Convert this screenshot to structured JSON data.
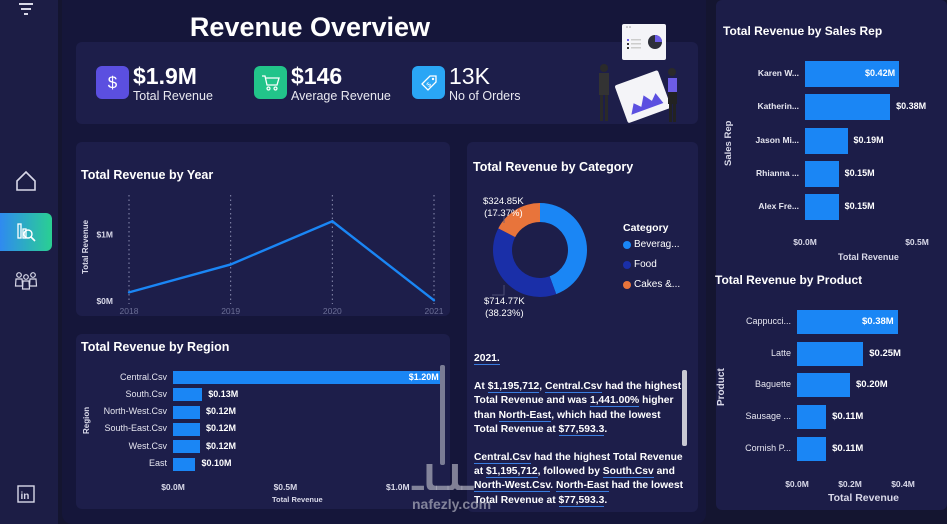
{
  "page": {
    "title": "Revenue Overview"
  },
  "sidebar": {
    "items": [
      {
        "name": "filter",
        "icon": "filter-icon"
      },
      {
        "name": "home",
        "icon": "home-icon"
      },
      {
        "name": "analytics",
        "icon": "analytics-icon",
        "active": true
      },
      {
        "name": "sales-reps",
        "icon": "people-icon"
      },
      {
        "name": "linkedin",
        "icon": "linkedin-icon"
      }
    ]
  },
  "kpis": [
    {
      "value": "$1.9M",
      "label": "Total Revenue",
      "icon": "dollar-icon",
      "color": "#5b4fe0"
    },
    {
      "value": "$146",
      "label": "Average Revenue",
      "icon": "cart-icon",
      "color": "#22c48a"
    },
    {
      "value": "13K",
      "label": "No of Orders",
      "icon": "tag-icon",
      "color": "#2aa6f5"
    }
  ],
  "colors": {
    "bar": "#1a86f5",
    "line": "#1a86f5",
    "beverages": "#1a86f5",
    "food": "#1a2fa8",
    "cakes": "#e8743b"
  },
  "chart_data": [
    {
      "id": "revenue-by-year",
      "type": "line",
      "title": "Total Revenue by Year",
      "xlabel": "",
      "ylabel": "Total Revenue",
      "categories": [
        "2018",
        "2019",
        "2020",
        "2021"
      ],
      "values": [
        0.13,
        0.55,
        1.2,
        0.01
      ],
      "y_ticks": [
        "$0M",
        "$1M"
      ],
      "ylim": [
        0,
        1.4
      ],
      "grid": "vertical-dotted"
    },
    {
      "id": "revenue-by-region",
      "type": "bar",
      "orientation": "horizontal",
      "title": "Total Revenue by Region",
      "xlabel": "Total Revenue",
      "ylabel": "Region",
      "categories": [
        "Central.Csv",
        "South.Csv",
        "North-West.Csv",
        "South-East.Csv",
        "West.Csv",
        "East"
      ],
      "values": [
        1.2,
        0.13,
        0.12,
        0.12,
        0.12,
        0.1
      ],
      "labels": [
        "$1.20M",
        "$0.13M",
        "$0.12M",
        "$0.12M",
        "$0.12M",
        "$0.10M"
      ],
      "x_ticks": [
        "$0.0M",
        "$0.5M",
        "$1.0M"
      ],
      "xlim": [
        0,
        1.25
      ]
    },
    {
      "id": "revenue-by-category",
      "type": "pie",
      "variant": "donut",
      "title": "Total Revenue by Category",
      "legend_title": "Category",
      "legend_position": "right",
      "categories": [
        "Beverag...",
        "Food",
        "Cakes &..."
      ],
      "values": [
        44.4,
        38.23,
        17.37
      ],
      "data_labels": [
        {
          "category": "Cakes &...",
          "text": "$324.85K",
          "pct": "(17.37%)"
        },
        {
          "category": "Food",
          "text": "$714.77K",
          "pct": "(38.23%)"
        }
      ]
    },
    {
      "id": "revenue-by-sales-rep",
      "type": "bar",
      "orientation": "horizontal",
      "title": "Total Revenue by Sales Rep",
      "xlabel": "Total Revenue",
      "ylabel": "Sales Rep",
      "categories": [
        "Karen W...",
        "Katherin...",
        "Jason Mi...",
        "Rhianna ...",
        "Alex Fre..."
      ],
      "values": [
        0.42,
        0.38,
        0.19,
        0.15,
        0.15
      ],
      "labels": [
        "$0.42M",
        "$0.38M",
        "$0.19M",
        "$0.15M",
        "$0.15M"
      ],
      "x_ticks": [
        "$0.0M",
        "$0.5M"
      ],
      "xlim": [
        0,
        0.5
      ]
    },
    {
      "id": "revenue-by-product",
      "type": "bar",
      "orientation": "horizontal",
      "title": "Total Revenue by Product",
      "xlabel": "Total Revenue",
      "ylabel": "Product",
      "categories": [
        "Cappucci...",
        "Latte",
        "Baguette",
        "Sausage ...",
        "Cornish P..."
      ],
      "values": [
        0.38,
        0.25,
        0.2,
        0.11,
        0.11
      ],
      "labels": [
        "$0.38M",
        "$0.25M",
        "$0.20M",
        "$0.11M",
        "$0.11M"
      ],
      "x_ticks": [
        "$0.0M",
        "$0.2M",
        "$0.4M"
      ],
      "xlim": [
        0,
        0.4
      ]
    }
  ],
  "narrative": {
    "p0": "2021.",
    "p1": {
      "t1": "At ",
      "v1": "$1,195,712",
      "t2": ", ",
      "v2": "Central.Csv",
      "t3": " had the highest Total Revenue and was ",
      "v3": "1,441.00%",
      "t4": " higher than ",
      "v4": "North-East",
      "t5": ", which had the lowest Total Revenue at ",
      "v5": "$77,593.3",
      "t6": "."
    },
    "p2": {
      "v1": "Central.Csv",
      "t1": " had the highest Total Revenue at ",
      "v2": "$1,195,712",
      "t2": ", followed by ",
      "v3": "South.Csv",
      "t3": " and ",
      "v4": "North-West.Csv",
      "t4": ". ",
      "v5": "North-East",
      "t5": " had the lowest Total Revenue at ",
      "v6": "$77,593.3",
      "t6": "."
    }
  },
  "watermark": {
    "text": "nafezly.com"
  }
}
